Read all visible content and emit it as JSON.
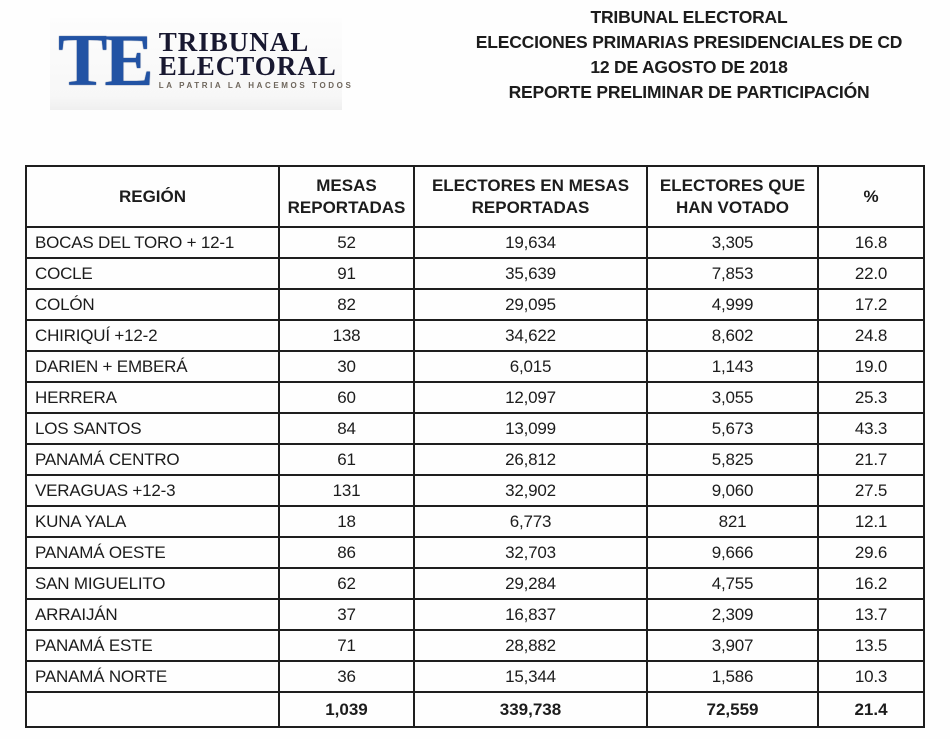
{
  "logo": {
    "mark": "TE",
    "name_line1": "TRIBUNAL",
    "name_line2": "ELECTORAL",
    "tagline": "LA PATRIA LA HACEMOS TODOS"
  },
  "header": {
    "lines": [
      "TRIBUNAL ELECTORAL",
      "ELECCIONES PRIMARIAS PRESIDENCIALES DE CD",
      "12 DE AGOSTO DE 2018",
      "REPORTE PRELIMINAR DE PARTICIPACIÓN"
    ]
  },
  "table": {
    "columns": [
      "REGIÓN",
      "MESAS REPORTADAS",
      "ELECTORES EN MESAS REPORTADAS",
      "ELECTORES QUE HAN VOTADO",
      "%"
    ],
    "rows": [
      {
        "region": "BOCAS DEL TORO + 12-1",
        "mesas": "52",
        "electores": "19,634",
        "votados": "3,305",
        "pct": "16.8"
      },
      {
        "region": "COCLE",
        "mesas": "91",
        "electores": "35,639",
        "votados": "7,853",
        "pct": "22.0"
      },
      {
        "region": "COLÓN",
        "mesas": "82",
        "electores": "29,095",
        "votados": "4,999",
        "pct": "17.2"
      },
      {
        "region": "CHIRIQUÍ +12-2",
        "mesas": "138",
        "electores": "34,622",
        "votados": "8,602",
        "pct": "24.8"
      },
      {
        "region": "DARIEN + EMBERÁ",
        "mesas": "30",
        "electores": "6,015",
        "votados": "1,143",
        "pct": "19.0"
      },
      {
        "region": "HERRERA",
        "mesas": "60",
        "electores": "12,097",
        "votados": "3,055",
        "pct": "25.3"
      },
      {
        "region": "LOS SANTOS",
        "mesas": "84",
        "electores": "13,099",
        "votados": "5,673",
        "pct": "43.3"
      },
      {
        "region": "PANAMÁ CENTRO",
        "mesas": "61",
        "electores": "26,812",
        "votados": "5,825",
        "pct": "21.7"
      },
      {
        "region": "VERAGUAS +12-3",
        "mesas": "131",
        "electores": "32,902",
        "votados": "9,060",
        "pct": "27.5"
      },
      {
        "region": "KUNA YALA",
        "mesas": "18",
        "electores": "6,773",
        "votados": "821",
        "pct": "12.1"
      },
      {
        "region": "PANAMÁ OESTE",
        "mesas": "86",
        "electores": "32,703",
        "votados": "9,666",
        "pct": "29.6"
      },
      {
        "region": "SAN MIGUELITO",
        "mesas": "62",
        "electores": "29,284",
        "votados": "4,755",
        "pct": "16.2"
      },
      {
        "region": "ARRAIJÁN",
        "mesas": "37",
        "electores": "16,837",
        "votados": "2,309",
        "pct": "13.7"
      },
      {
        "region": "PANAMÁ ESTE",
        "mesas": "71",
        "electores": "28,882",
        "votados": "3,907",
        "pct": "13.5"
      },
      {
        "region": "PANAMÁ NORTE",
        "mesas": "36",
        "electores": "15,344",
        "votados": "1,586",
        "pct": "10.3"
      }
    ],
    "totals": {
      "region": "",
      "mesas": "1,039",
      "electores": "339,738",
      "votados": "72,559",
      "pct": "21.4"
    }
  },
  "colors": {
    "logo_blue": "#2253a4",
    "logo_navy": "#181830",
    "tagline_gray": "#6e665c",
    "text": "#1c1c1c",
    "border": "#1e1e1e"
  }
}
